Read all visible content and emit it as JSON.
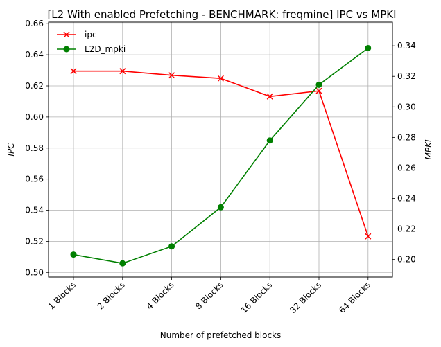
{
  "chart_data": {
    "type": "line",
    "title": "[L2 With enabled Prefetching - BENCHMARK: freqmine]  IPC vs MPKI",
    "xlabel": "Number of prefetched blocks",
    "ylabel_left": "IPC",
    "ylabel_right": "MPKI",
    "categories": [
      "1 Blocks",
      "2 Blocks",
      "4 Blocks",
      "8 Blocks",
      "16 Blocks",
      "32 Blocks",
      "64 Blocks"
    ],
    "grid": true,
    "legend_position": "top-left",
    "y_left": {
      "lim": [
        0.497,
        0.661
      ],
      "ticks": [
        0.5,
        0.52,
        0.54,
        0.56,
        0.58,
        0.6,
        0.62,
        0.64,
        0.66
      ],
      "tick_labels": [
        "0.50",
        "0.52",
        "0.54",
        "0.56",
        "0.58",
        "0.60",
        "0.62",
        "0.64",
        "0.66"
      ]
    },
    "y_right": {
      "lim": [
        0.1885,
        0.3555
      ],
      "ticks": [
        0.2,
        0.22,
        0.24,
        0.26,
        0.28,
        0.3,
        0.32,
        0.34
      ],
      "tick_labels": [
        "0.20",
        "0.22",
        "0.24",
        "0.26",
        "0.28",
        "0.30",
        "0.32",
        "0.34"
      ]
    },
    "series": [
      {
        "name": "ipc",
        "axis": "left",
        "color": "#ff0000",
        "marker": "x",
        "values": [
          0.6295,
          0.6295,
          0.6268,
          0.6248,
          0.6132,
          0.6168,
          0.5232
        ]
      },
      {
        "name": "L2D_mpki",
        "axis": "right",
        "color": "#008000",
        "marker": "circle",
        "values": [
          0.2032,
          0.1975,
          0.2086,
          0.2342,
          0.278,
          0.3145,
          0.3385
        ]
      }
    ]
  }
}
